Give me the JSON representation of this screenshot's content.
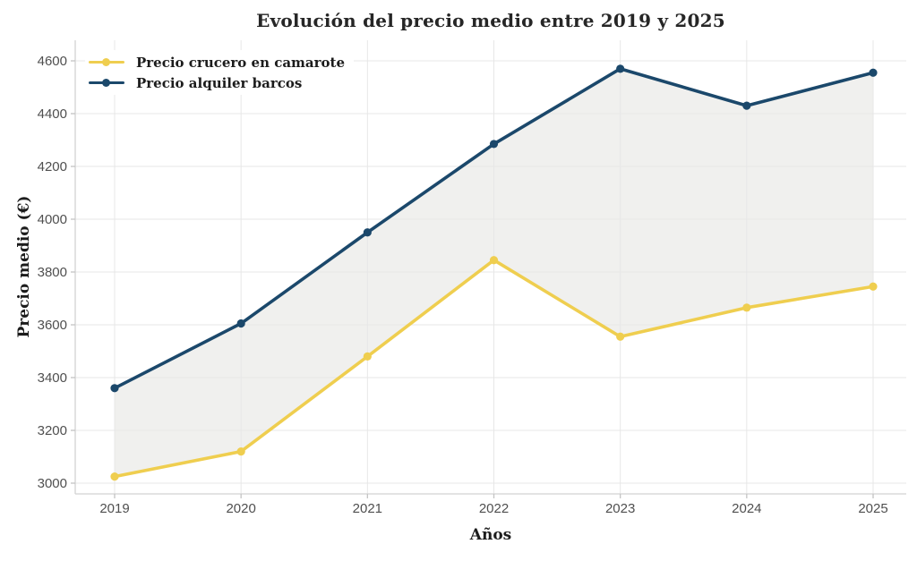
{
  "chart_data": {
    "type": "line",
    "title": "Evolución del precio medio entre 2019 y 2025",
    "xlabel": "Años",
    "ylabel": "Precio medio (€)",
    "categories": [
      "2019",
      "2020",
      "2021",
      "2022",
      "2023",
      "2024",
      "2025"
    ],
    "series": [
      {
        "name": "Precio crucero en camarote",
        "color": "#EFCE4F",
        "marker": "circle",
        "values": [
          3025,
          3120,
          3480,
          3845,
          3555,
          3665,
          3745
        ]
      },
      {
        "name": "Precio alquiler barcos",
        "color": "#1B486B",
        "marker": "circle",
        "values": [
          3360,
          3605,
          3950,
          4285,
          4570,
          4430,
          4555
        ]
      }
    ],
    "yticks": [
      3000,
      3200,
      3400,
      3600,
      3800,
      4000,
      4200,
      4400,
      4600
    ],
    "ylim": [
      2960,
      4680
    ],
    "grid": true,
    "legend_position": "top-left",
    "band_between_series": true,
    "colors": {
      "grid": "#e7e7e7",
      "spine": "#d2d2d2",
      "tick": "#c4c4c4",
      "band": "#f0f0ee",
      "title": "#262626"
    }
  }
}
